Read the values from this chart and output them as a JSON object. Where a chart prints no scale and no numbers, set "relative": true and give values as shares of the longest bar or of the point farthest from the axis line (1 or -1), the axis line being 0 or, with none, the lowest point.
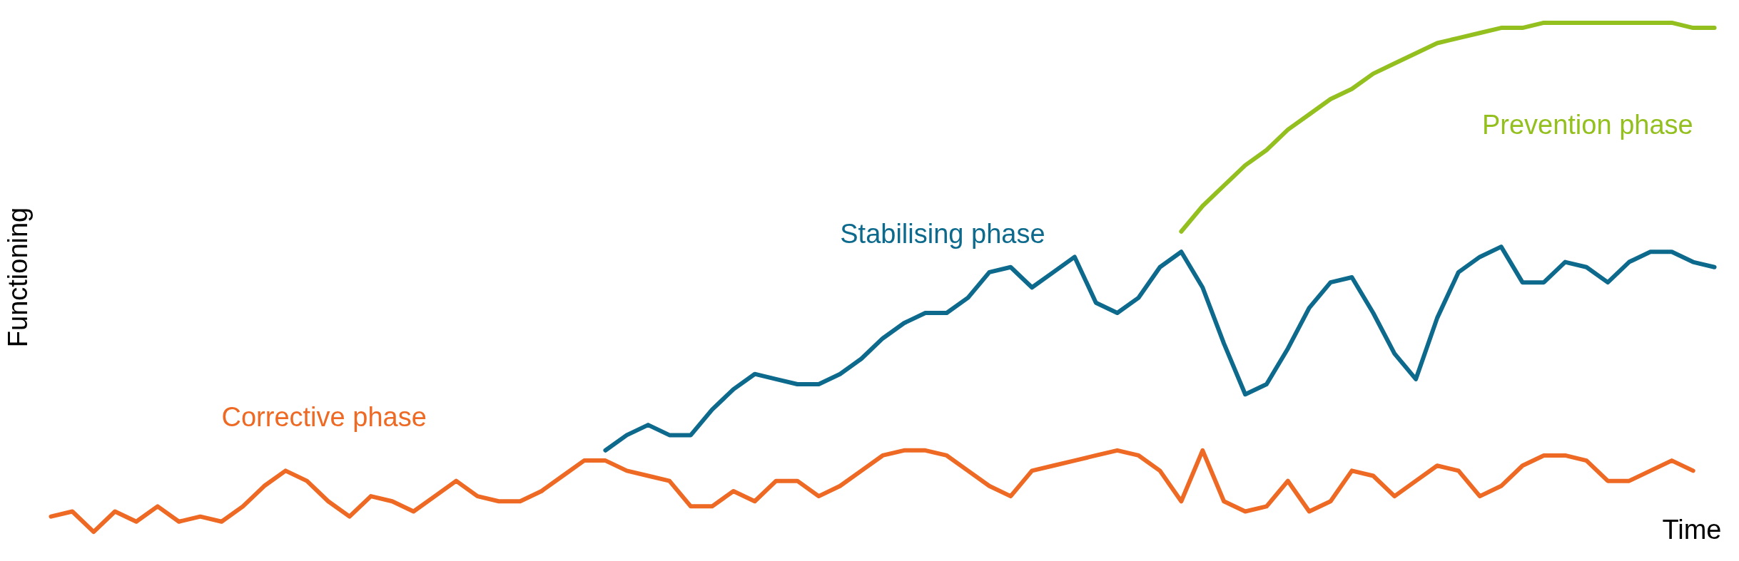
{
  "chart_data": {
    "type": "line",
    "relative": true,
    "xlabel": "Time",
    "ylabel": "Functioning",
    "line_style": "solid",
    "categories": [
      null,
      null,
      null,
      null,
      null,
      null,
      null,
      null,
      null,
      null,
      null,
      null,
      null,
      null,
      null,
      null,
      null,
      null,
      null,
      null,
      null,
      null,
      null,
      null,
      null,
      null,
      null,
      null,
      null,
      null,
      null,
      null,
      null,
      null,
      null,
      null,
      null,
      null,
      null,
      null,
      null,
      null,
      null,
      null,
      null,
      null,
      null,
      null,
      null,
      null,
      null,
      null,
      null,
      null,
      null,
      null,
      null,
      null,
      null,
      null,
      null,
      null,
      null,
      null,
      null,
      null,
      null,
      null,
      null,
      null,
      null,
      null,
      null,
      null,
      null,
      null,
      null,
      null,
      null
    ],
    "series": [
      {
        "name": "Corrective phase",
        "color": "#ee6a24",
        "values": [
          0.03,
          0.04,
          0.0,
          0.04,
          0.02,
          0.05,
          0.02,
          0.03,
          0.02,
          0.05,
          0.09,
          0.12,
          0.1,
          0.06,
          0.03,
          0.07,
          0.06,
          0.04,
          0.07,
          0.1,
          0.07,
          0.06,
          0.06,
          0.08,
          0.11,
          0.14,
          0.14,
          0.12,
          0.11,
          0.1,
          0.05,
          0.05,
          0.08,
          0.06,
          0.1,
          0.1,
          0.07,
          0.09,
          0.12,
          0.15,
          0.16,
          0.16,
          0.15,
          0.12,
          0.09,
          0.07,
          0.12,
          0.13,
          0.14,
          0.15,
          0.16,
          0.15,
          0.12,
          0.06,
          0.16,
          0.06,
          0.04,
          0.05,
          0.1,
          0.04,
          0.06,
          0.12,
          0.11,
          0.07,
          0.1,
          0.13,
          0.12,
          0.07,
          0.09,
          0.13,
          0.15,
          0.15,
          0.14,
          0.1,
          0.1,
          0.12,
          0.14,
          0.12,
          null
        ]
      },
      {
        "name": "Stabilising phase",
        "color": "#0d6a8c",
        "values": [
          null,
          null,
          null,
          null,
          null,
          null,
          null,
          null,
          null,
          null,
          null,
          null,
          null,
          null,
          null,
          null,
          null,
          null,
          null,
          null,
          null,
          null,
          null,
          null,
          null,
          null,
          0.16,
          0.19,
          0.21,
          0.19,
          0.19,
          0.24,
          0.28,
          0.31,
          0.3,
          0.29,
          0.29,
          0.31,
          0.34,
          0.38,
          0.41,
          0.43,
          0.43,
          0.46,
          0.51,
          0.52,
          0.48,
          0.51,
          0.54,
          0.45,
          0.43,
          0.46,
          0.52,
          0.55,
          0.48,
          0.37,
          0.27,
          0.29,
          0.36,
          0.44,
          0.49,
          0.5,
          0.43,
          0.35,
          0.3,
          0.42,
          0.51,
          0.54,
          0.56,
          0.49,
          0.49,
          0.53,
          0.52,
          0.49,
          0.53,
          0.55,
          0.55,
          0.53,
          0.52
        ]
      },
      {
        "name": "Prevention phase",
        "color": "#93c01f",
        "values": [
          null,
          null,
          null,
          null,
          null,
          null,
          null,
          null,
          null,
          null,
          null,
          null,
          null,
          null,
          null,
          null,
          null,
          null,
          null,
          null,
          null,
          null,
          null,
          null,
          null,
          null,
          null,
          null,
          null,
          null,
          null,
          null,
          null,
          null,
          null,
          null,
          null,
          null,
          null,
          null,
          null,
          null,
          null,
          null,
          null,
          null,
          null,
          null,
          null,
          null,
          null,
          null,
          null,
          0.59,
          0.64,
          0.68,
          0.72,
          0.75,
          0.79,
          0.82,
          0.85,
          0.87,
          0.9,
          0.92,
          0.94,
          0.96,
          0.97,
          0.98,
          0.99,
          0.99,
          1.0,
          1.0,
          1.0,
          1.0,
          1.0,
          1.0,
          1.0,
          0.99,
          0.99
        ]
      }
    ]
  }
}
